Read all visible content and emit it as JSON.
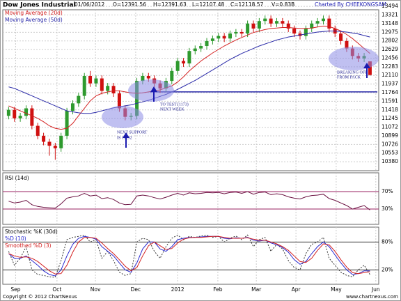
{
  "header": {
    "title": "Dow Jones Industrial",
    "date": "01/06/2012",
    "open": "O=12391.56",
    "high": "H=12391.63",
    "low": "L=12107.48",
    "close": "C=12118.57",
    "volume": "V=0.83B",
    "credit": "Charted By CHEEKONGSAM"
  },
  "footer": {
    "copyright": "Copyright © 2012 ChartNexus",
    "site": "www.chartnexus.com"
  },
  "chart_data": [
    {
      "type": "candlestick",
      "up_color": "#2e9a2e",
      "down_color": "#d01010",
      "open": [
        11300,
        11420,
        11250,
        11300,
        11450,
        11100,
        10900,
        10780,
        10700,
        10650,
        10900,
        11400,
        11550,
        11700,
        12100,
        11950,
        12050,
        11800,
        11900,
        11750,
        11450,
        11280,
        11300,
        12000,
        12100,
        12050,
        11950,
        11850,
        12000,
        12200,
        12400,
        12350,
        12600,
        12650,
        12700,
        12800,
        12850,
        12900,
        12850,
        12950,
        12980,
        12950,
        13150,
        13050,
        13200,
        13250,
        13150,
        13200,
        13150,
        13050,
        12950,
        12900,
        13050,
        13150,
        13200,
        13250,
        13050,
        12950,
        12800,
        12650,
        12500,
        12450,
        12391.56
      ],
      "high": [
        11480,
        11480,
        11360,
        11510,
        11510,
        11160,
        10960,
        10840,
        10760,
        10960,
        11460,
        11610,
        11760,
        12160,
        12200,
        12110,
        12110,
        11960,
        11960,
        11810,
        11510,
        11360,
        12060,
        12160,
        12160,
        12110,
        12010,
        12060,
        12260,
        12460,
        12460,
        12660,
        12710,
        12760,
        12860,
        12910,
        12960,
        12960,
        13010,
        13040,
        13040,
        13210,
        13210,
        13260,
        13310,
        13310,
        13260,
        13260,
        13210,
        13110,
        13010,
        13110,
        13210,
        13260,
        13310,
        13310,
        13110,
        13010,
        12860,
        12710,
        12560,
        12560,
        12391.63
      ],
      "low": [
        11230,
        11180,
        11180,
        11230,
        11030,
        10830,
        10710,
        10500,
        10420,
        10580,
        10830,
        11330,
        11480,
        11630,
        11880,
        11880,
        11730,
        11730,
        11680,
        11380,
        11210,
        11210,
        11230,
        11930,
        11980,
        11880,
        11760,
        11780,
        11930,
        12130,
        12280,
        12280,
        12530,
        12580,
        12630,
        12730,
        12780,
        12780,
        12780,
        12880,
        12880,
        12880,
        12980,
        12980,
        13130,
        13080,
        13080,
        13080,
        12980,
        12880,
        12830,
        12830,
        12980,
        13080,
        13130,
        12980,
        12880,
        12730,
        12580,
        12430,
        12380,
        12380,
        12107.48
      ],
      "close": [
        11420,
        11250,
        11300,
        11450,
        11100,
        10900,
        10780,
        10700,
        10650,
        10900,
        11400,
        11550,
        11700,
        12100,
        11950,
        12050,
        11800,
        11900,
        11750,
        11450,
        11280,
        11300,
        12000,
        12100,
        12050,
        11950,
        11850,
        12000,
        12200,
        12400,
        12350,
        12600,
        12650,
        12700,
        12800,
        12850,
        12900,
        12850,
        12950,
        12980,
        12950,
        13150,
        13050,
        13200,
        13250,
        13150,
        13200,
        13150,
        13050,
        12950,
        12900,
        13050,
        13150,
        13200,
        13250,
        13050,
        12950,
        12800,
        12650,
        12500,
        12450,
        12500,
        12118.57
      ],
      "series": [
        {
          "name": "Moving Average (20d)",
          "color": "#d42020",
          "values": [
            11500,
            11450,
            11400,
            11350,
            11300,
            11250,
            11180,
            11100,
            11050,
            11030,
            11050,
            11150,
            11300,
            11450,
            11600,
            11700,
            11750,
            11780,
            11800,
            11800,
            11780,
            11760,
            11750,
            11760,
            11780,
            11800,
            11820,
            11860,
            11900,
            11980,
            12080,
            12200,
            12300,
            12400,
            12480,
            12560,
            12630,
            12700,
            12760,
            12820,
            12870,
            12920,
            12970,
            13000,
            13030,
            13050,
            13060,
            13070,
            13070,
            13060,
            13050,
            13050,
            13060,
            13080,
            13100,
            13090,
            13050,
            13000,
            12930,
            12850,
            12750,
            12650,
            12550
          ]
        },
        {
          "name": "Moving Average (50d)",
          "color": "#2a2aa8",
          "values": [
            11880,
            11850,
            11800,
            11750,
            11700,
            11650,
            11600,
            11550,
            11500,
            11450,
            11400,
            11380,
            11360,
            11350,
            11350,
            11370,
            11400,
            11430,
            11460,
            11480,
            11500,
            11520,
            11550,
            11580,
            11610,
            11650,
            11690,
            11730,
            11780,
            11830,
            11890,
            11950,
            12010,
            12080,
            12150,
            12220,
            12290,
            12360,
            12430,
            12490,
            12550,
            12600,
            12650,
            12700,
            12740,
            12780,
            12820,
            12850,
            12880,
            12900,
            12920,
            12940,
            12960,
            12980,
            12990,
            13000,
            13000,
            12990,
            12980,
            12960,
            12940,
            12910,
            12880
          ]
        }
      ],
      "support_level": 11780,
      "support_color": "#2a2aa8",
      "ylim": [
        10200,
        13580
      ],
      "yticks": [
        13494,
        13321,
        13148,
        12975,
        12802,
        12629,
        12456,
        12283,
        12110,
        11937,
        11764,
        11591,
        11418,
        11245,
        11072,
        10899,
        10726,
        10553,
        10380
      ],
      "xlim": [
        -1,
        63.5
      ],
      "xticks": [
        {
          "value": 1.2,
          "label": "Sep"
        },
        {
          "value": 8.3,
          "label": "Oct"
        },
        {
          "value": 14.9,
          "label": "Nov"
        },
        {
          "value": 21.8,
          "label": "Dec"
        },
        {
          "value": 29,
          "label": "2012"
        },
        {
          "value": 35.9,
          "label": "Feb"
        },
        {
          "value": 42.5,
          "label": "Mar"
        },
        {
          "value": 49.3,
          "label": "Apr"
        },
        {
          "value": 56.2,
          "label": "May"
        },
        {
          "value": 63,
          "label": "Jun"
        }
      ],
      "annotations": [
        [
          "NEXT SUPPORT",
          "IS 11232"
        ],
        [
          "TO TEST (1173)",
          "NEXT WEEK"
        ],
        [
          "BREAKING OFF",
          "FROM PACK"
        ]
      ]
    },
    {
      "type": "line",
      "title": "RSI (14d)",
      "series": [
        {
          "name": "RSI",
          "color": "#6a1040",
          "values": [
            48,
            44,
            46,
            50,
            40,
            36,
            34,
            33,
            32,
            42,
            55,
            58,
            60,
            66,
            60,
            62,
            54,
            56,
            52,
            44,
            40,
            41,
            60,
            62,
            60,
            56,
            53,
            57,
            62,
            66,
            62,
            67,
            65,
            66,
            68,
            67,
            68,
            65,
            68,
            69,
            66,
            70,
            64,
            68,
            69,
            63,
            65,
            63,
            58,
            55,
            53,
            58,
            61,
            62,
            64,
            54,
            50,
            44,
            38,
            30,
            34,
            38,
            28
          ]
        }
      ],
      "ylim": [
        -5,
        113
      ],
      "level_color": "#9a2060",
      "yticks": [
        {
          "value": 30,
          "label": "30%"
        },
        {
          "value": 70,
          "label": "70%"
        }
      ]
    },
    {
      "type": "line",
      "title": "Stochastic %K (30d)",
      "series": [
        {
          "name": "Stochastic %K (30d)",
          "color": "#333333",
          "dash": true,
          "values": [
            60,
            30,
            45,
            70,
            20,
            10,
            8,
            5,
            4,
            40,
            85,
            90,
            92,
            95,
            80,
            85,
            45,
            60,
            40,
            15,
            8,
            12,
            80,
            88,
            85,
            60,
            45,
            70,
            88,
            95,
            85,
            92,
            90,
            93,
            95,
            90,
            92,
            80,
            88,
            93,
            85,
            95,
            70,
            85,
            90,
            60,
            75,
            65,
            40,
            25,
            20,
            55,
            75,
            80,
            90,
            45,
            30,
            15,
            8,
            5,
            20,
            30,
            10
          ]
        },
        {
          "name": "%D (10)",
          "color": "#2a2ad0",
          "values": [
            55,
            45,
            45,
            50,
            40,
            30,
            18,
            10,
            7,
            20,
            50,
            75,
            88,
            92,
            90,
            86,
            70,
            60,
            50,
            35,
            20,
            15,
            35,
            65,
            80,
            80,
            65,
            60,
            70,
            85,
            88,
            90,
            90,
            91,
            92,
            92,
            92,
            88,
            87,
            89,
            88,
            90,
            84,
            82,
            84,
            78,
            74,
            68,
            58,
            42,
            32,
            38,
            55,
            70,
            80,
            70,
            52,
            35,
            20,
            10,
            12,
            18,
            18
          ]
        },
        {
          "name": "Smoothed %D (3)",
          "color": "#d42020",
          "values": [
            55,
            50,
            47,
            48,
            45,
            38,
            28,
            18,
            11,
            12,
            30,
            58,
            80,
            90,
            90,
            88,
            78,
            66,
            55,
            42,
            28,
            18,
            25,
            50,
            72,
            80,
            72,
            64,
            66,
            78,
            86,
            89,
            90,
            90,
            91,
            92,
            92,
            90,
            88,
            88,
            88,
            89,
            86,
            84,
            84,
            80,
            76,
            70,
            62,
            50,
            38,
            36,
            45,
            62,
            76,
            74,
            60,
            42,
            26,
            14,
            12,
            14,
            16
          ]
        }
      ],
      "ylim": [
        -11,
        112
      ],
      "level_color": "#333333",
      "yticks": [
        {
          "value": 20,
          "label": "20%"
        },
        {
          "value": 80,
          "label": "80%"
        }
      ]
    }
  ]
}
